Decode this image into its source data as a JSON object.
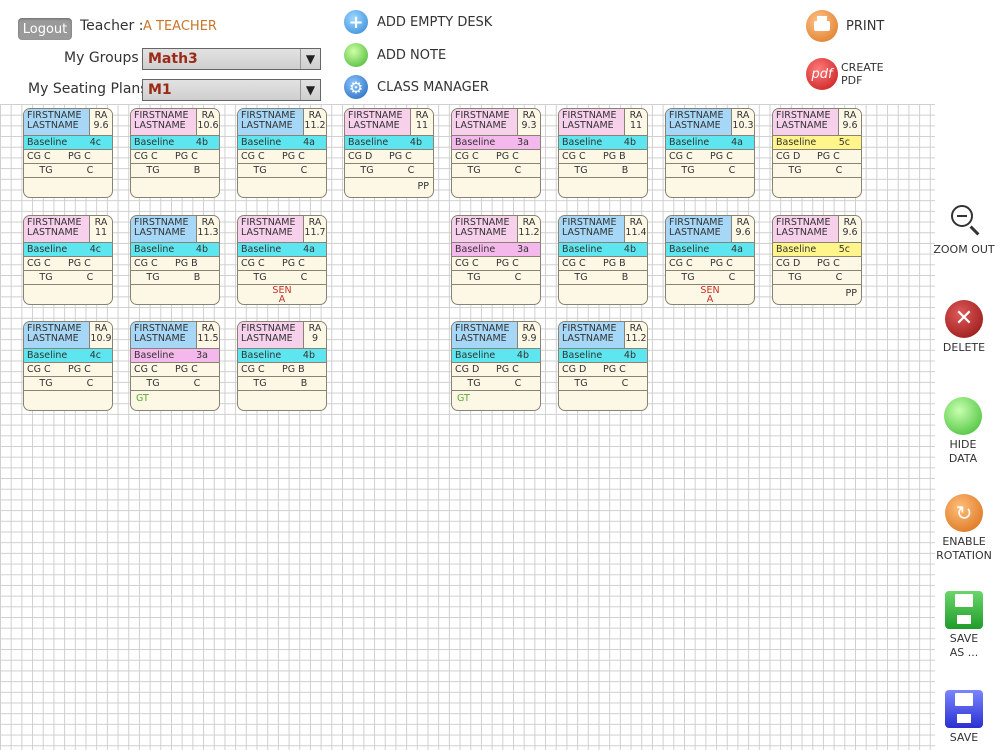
{
  "header": {
    "logout_label": "Logout",
    "teacher_label": "Teacher :",
    "teacher_name": "A TEACHER",
    "groups_label": "My Groups :",
    "groups_value": "Math3",
    "plans_label": "My Seating Plans :",
    "plans_value": "M1",
    "actions": {
      "add_desk": "ADD EMPTY DESK",
      "add_note": "ADD NOTE",
      "class_manager": "CLASS MANAGER"
    },
    "print_label": "PRINT",
    "pdf_label_1": "CREATE",
    "pdf_label_2": "PDF",
    "pdf_icon_text": "pdf"
  },
  "desk_labels": {
    "first": "FIRSTNAME",
    "last": "LASTNAME",
    "ra": "RA",
    "baseline": "Baseline",
    "cg": "CG",
    "pg": "PG",
    "tg": "TG"
  },
  "desks": [
    {
      "id": "r1c1",
      "names_color": "#a7d7f6",
      "ra": "9.6",
      "bl_color": "#5ee6f0",
      "baseline": "4c",
      "cg": "C",
      "pg": "C",
      "tg": "C",
      "extra": ""
    },
    {
      "id": "r1c2",
      "names_color": "#f7d0ec",
      "ra": "10.6",
      "bl_color": "#5ee6f0",
      "baseline": "4b",
      "cg": "C",
      "pg": "C",
      "tg": "B",
      "extra": ""
    },
    {
      "id": "r1c3",
      "names_color": "#a7d7f6",
      "ra": "11.2",
      "bl_color": "#5ee6f0",
      "baseline": "4a",
      "cg": "C",
      "pg": "C",
      "tg": "C",
      "extra": ""
    },
    {
      "id": "r1c4",
      "names_color": "#f7d0ec",
      "ra": "11",
      "bl_color": "#5ee6f0",
      "baseline": "4b",
      "cg": "D",
      "pg": "C",
      "tg": "C",
      "extra": "PP"
    },
    {
      "id": "r1c5",
      "names_color": "#f7d0ec",
      "ra": "9.3",
      "bl_color": "#f5b8ec",
      "baseline": "3a",
      "cg": "C",
      "pg": "C",
      "tg": "C",
      "extra": ""
    },
    {
      "id": "r1c6",
      "names_color": "#f7d0ec",
      "ra": "11",
      "bl_color": "#5ee6f0",
      "baseline": "4b",
      "cg": "C",
      "pg": "B",
      "tg": "B",
      "extra": ""
    },
    {
      "id": "r1c7",
      "names_color": "#a7d7f6",
      "ra": "10.3",
      "bl_color": "#5ee6f0",
      "baseline": "4a",
      "cg": "C",
      "pg": "C",
      "tg": "C",
      "extra": ""
    },
    {
      "id": "r1c8",
      "names_color": "#f7d0ec",
      "ra": "9.6",
      "bl_color": "#fff58a",
      "baseline": "5c",
      "cg": "D",
      "pg": "C",
      "tg": "C",
      "extra": ""
    },
    {
      "id": "r2c1",
      "names_color": "#f7d0ec",
      "ra": "11",
      "bl_color": "#5ee6f0",
      "baseline": "4c",
      "cg": "C",
      "pg": "C",
      "tg": "C",
      "extra": ""
    },
    {
      "id": "r2c2",
      "names_color": "#a7d7f6",
      "ra": "11.3",
      "bl_color": "#5ee6f0",
      "baseline": "4b",
      "cg": "C",
      "pg": "B",
      "tg": "B",
      "extra": ""
    },
    {
      "id": "r2c3",
      "names_color": "#f7d0ec",
      "ra": "11.7",
      "bl_color": "#5ee6f0",
      "baseline": "4a",
      "cg": "C",
      "pg": "C",
      "tg": "C",
      "extra": "SEN A"
    },
    {
      "id": "r2c5",
      "names_color": "#f7d0ec",
      "ra": "11.2",
      "bl_color": "#f5b8ec",
      "baseline": "3a",
      "cg": "C",
      "pg": "C",
      "tg": "C",
      "extra": ""
    },
    {
      "id": "r2c6",
      "names_color": "#a7d7f6",
      "ra": "11.4",
      "bl_color": "#5ee6f0",
      "baseline": "4b",
      "cg": "C",
      "pg": "B",
      "tg": "B",
      "extra": ""
    },
    {
      "id": "r2c7",
      "names_color": "#a7d7f6",
      "ra": "9.6",
      "bl_color": "#5ee6f0",
      "baseline": "4a",
      "cg": "C",
      "pg": "C",
      "tg": "C",
      "extra": "SEN A"
    },
    {
      "id": "r2c8",
      "names_color": "#f7d0ec",
      "ra": "9.6",
      "bl_color": "#fff58a",
      "baseline": "5c",
      "cg": "D",
      "pg": "C",
      "tg": "C",
      "extra": "PP"
    },
    {
      "id": "r3c1",
      "names_color": "#a7d7f6",
      "ra": "10.9",
      "bl_color": "#5ee6f0",
      "baseline": "4c",
      "cg": "C",
      "pg": "C",
      "tg": "C",
      "extra": ""
    },
    {
      "id": "r3c2",
      "names_color": "#a7d7f6",
      "ra": "11.5",
      "bl_color": "#f5b8ec",
      "baseline": "3a",
      "cg": "C",
      "pg": "C",
      "tg": "C",
      "extra": "GT"
    },
    {
      "id": "r3c3",
      "names_color": "#f7d0ec",
      "ra": "9",
      "bl_color": "#5ee6f0",
      "baseline": "4b",
      "cg": "C",
      "pg": "B",
      "tg": "B",
      "extra": ""
    },
    {
      "id": "r3c5",
      "names_color": "#a7d7f6",
      "ra": "9.9",
      "bl_color": "#5ee6f0",
      "baseline": "4b",
      "cg": "D",
      "pg": "C",
      "tg": "C",
      "extra": "GT"
    },
    {
      "id": "r3c6",
      "names_color": "#a7d7f6",
      "ra": "11.2",
      "bl_color": "#5ee6f0",
      "baseline": "4b",
      "cg": "D",
      "pg": "C",
      "tg": "C",
      "extra": ""
    }
  ],
  "toolbar": {
    "zoom_out": "ZOOM OUT",
    "delete": "DELETE",
    "hide_1": "HIDE",
    "hide_2": "DATA",
    "rot_1": "ENABLE",
    "rot_2": "ROTATION",
    "saveas_1": "SAVE",
    "saveas_2": "AS ...",
    "save": "SAVE"
  }
}
